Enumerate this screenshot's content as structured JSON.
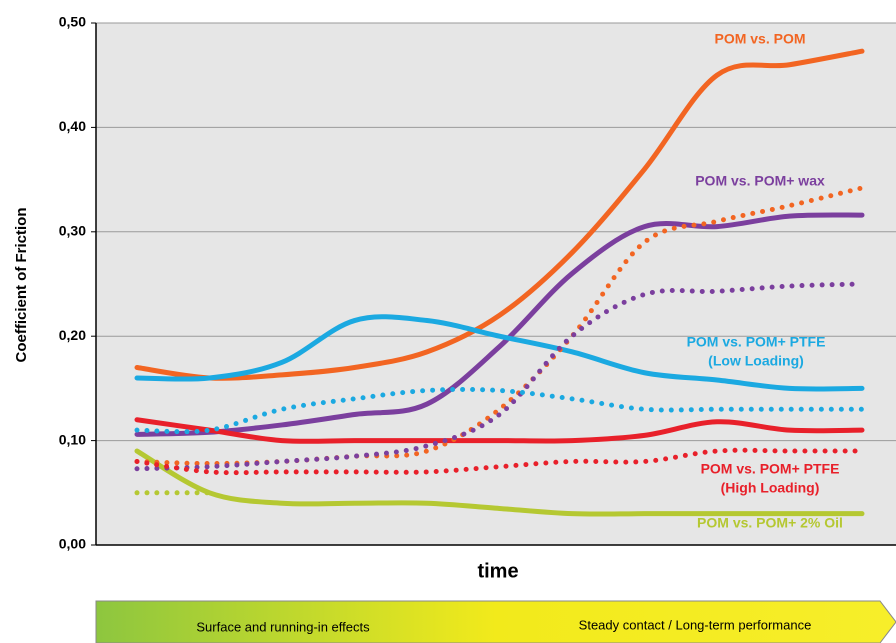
{
  "chart_data": {
    "type": "line",
    "y_label": "Coefficient of Friction",
    "x_label": "time",
    "categories": [
      null,
      null,
      null,
      null,
      null,
      null,
      null,
      null,
      null,
      null,
      null
    ],
    "ylim": [
      0,
      0.5
    ],
    "yticks": [
      {
        "value": 0,
        "label": "0,00"
      },
      {
        "value": 0.1,
        "label": "0,10"
      },
      {
        "value": 0.2,
        "label": "0,20"
      },
      {
        "value": 0.3,
        "label": "0,30"
      },
      {
        "value": 0.4,
        "label": "0,40"
      },
      {
        "value": 0.5,
        "label": "0,50"
      }
    ],
    "grid": true,
    "series": [
      {
        "name": [
          "POM vs. POM"
        ],
        "color": "#f26522",
        "style": "solid",
        "values": [
          0.17,
          0.16,
          0.163,
          0.17,
          0.185,
          0.22,
          0.28,
          0.36,
          0.45,
          0.46,
          0.473
        ]
      },
      {
        "name": [
          "POM vs. POM+ wax"
        ],
        "color": "#7b3f9e",
        "style": "solid",
        "values": [
          0.106,
          0.108,
          0.115,
          0.125,
          0.135,
          0.19,
          0.26,
          0.305,
          0.305,
          0.315,
          0.316
        ]
      },
      {
        "name": [
          "POM vs. POM+ PTFE",
          "(Low Loading)"
        ],
        "color": "#1ba9e1",
        "style": "solid",
        "values": [
          0.16,
          0.16,
          0.175,
          0.215,
          0.215,
          0.2,
          0.185,
          0.165,
          0.158,
          0.15,
          0.15
        ]
      },
      {
        "name": [
          "POM vs. POM+ PTFE",
          "(High Loading)"
        ],
        "color": "#e8202a",
        "style": "solid",
        "values": [
          0.12,
          0.11,
          0.1,
          0.1,
          0.1,
          0.1,
          0.1,
          0.105,
          0.118,
          0.11,
          0.11
        ]
      },
      {
        "name": [
          "POM vs. POM+ 2% Oil"
        ],
        "color": "#b5c832",
        "style": "solid",
        "values": [
          0.09,
          0.05,
          0.04,
          0.04,
          0.04,
          0.035,
          0.03,
          0.03,
          0.03,
          0.03,
          0.03
        ]
      },
      {
        "color": "#f26522",
        "style": "dotted",
        "values": [
          0.08,
          0.078,
          0.08,
          0.085,
          0.09,
          0.13,
          0.2,
          0.29,
          0.31,
          0.325,
          0.342
        ]
      },
      {
        "color": "#7b3f9e",
        "style": "dotted",
        "values": [
          0.073,
          0.075,
          0.08,
          0.085,
          0.095,
          0.125,
          0.2,
          0.24,
          0.243,
          0.248,
          0.25
        ]
      },
      {
        "color": "#1ba9e1",
        "style": "dotted",
        "values": [
          0.11,
          0.11,
          0.13,
          0.14,
          0.148,
          0.148,
          0.14,
          0.13,
          0.13,
          0.13,
          0.13
        ]
      },
      {
        "color": "#e8202a",
        "style": "dotted",
        "values": [
          0.08,
          0.07,
          0.07,
          0.07,
          0.07,
          0.075,
          0.08,
          0.08,
          0.09,
          0.09,
          0.09
        ]
      },
      {
        "color": "#b5c832",
        "style": "dotted",
        "values": [
          0.05,
          0.05,
          null,
          null,
          null,
          null,
          null,
          null,
          null,
          null,
          null
        ]
      }
    ],
    "phases": [
      "Surface and running-in effects",
      "Steady contact / Long-term performance"
    ]
  }
}
